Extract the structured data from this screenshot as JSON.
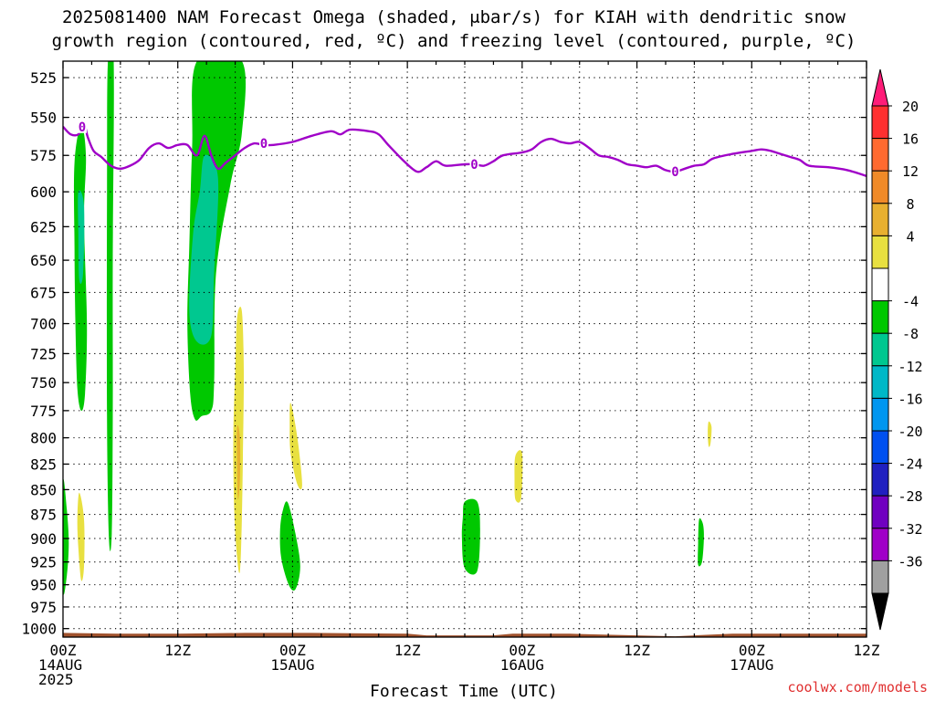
{
  "chart_data": {
    "type": "heatmap",
    "title_lines": [
      "2025081400 NAM Forecast Omega (shaded, μbar/s) for KIAH with dendritic snow",
      "growth region (contoured, red, ºC) and freezing level (contoured, purple, ºC)"
    ],
    "xlabel": "Forecast Time (UTC)",
    "credit": "coolwx.com/models",
    "x_range_hours": [
      0,
      84
    ],
    "y_scale": "log-pressure",
    "y_range_hPa": [
      1010,
      515
    ],
    "y_ticks": [
      525,
      550,
      575,
      600,
      625,
      650,
      675,
      700,
      725,
      750,
      775,
      800,
      825,
      850,
      875,
      900,
      925,
      950,
      975,
      1000
    ],
    "x_ticks": [
      {
        "hour": 0,
        "lines": [
          "00Z",
          "14AUG",
          "2025"
        ]
      },
      {
        "hour": 12,
        "lines": [
          "12Z"
        ]
      },
      {
        "hour": 24,
        "lines": [
          "00Z",
          "15AUG"
        ]
      },
      {
        "hour": 36,
        "lines": [
          "12Z"
        ]
      },
      {
        "hour": 48,
        "lines": [
          "00Z",
          "16AUG"
        ]
      },
      {
        "hour": 60,
        "lines": [
          "12Z"
        ]
      },
      {
        "hour": 72,
        "lines": [
          "00Z",
          "17AUG"
        ]
      },
      {
        "hour": 84,
        "lines": [
          "12Z"
        ]
      }
    ],
    "grid": true,
    "colorbar": {
      "orientation": "vertical",
      "placement": "right",
      "labels": [
        "20",
        "16",
        "12",
        "8",
        "4",
        "-4",
        "-8",
        "-12",
        "-16",
        "-20",
        "-24",
        "-28",
        "-32",
        "-36"
      ],
      "colors": [
        "#ff1c78",
        "#ff3030",
        "#ff6a30",
        "#f08a28",
        "#e8b030",
        "#e8e040",
        "#ffffff",
        "#00c800",
        "#00c890",
        "#00b8c8",
        "#0096f0",
        "#0050f0",
        "#2020c0",
        "#7000c0",
        "#a000c8",
        "#a0a0a0",
        "#000000"
      ]
    },
    "freezing_level": {
      "color": "#a000c8",
      "label": "0",
      "points": [
        [
          0.0,
          556
        ],
        [
          0.8,
          561
        ],
        [
          1.6,
          561
        ],
        [
          2.2,
          555
        ],
        [
          2.6,
          563
        ],
        [
          3.2,
          572
        ],
        [
          4.0,
          576
        ],
        [
          5.0,
          582
        ],
        [
          6.0,
          584
        ],
        [
          7.0,
          582
        ],
        [
          8.0,
          578
        ],
        [
          9.0,
          570
        ],
        [
          10.0,
          567
        ],
        [
          11.0,
          570
        ],
        [
          12.0,
          568
        ],
        [
          13.0,
          568
        ],
        [
          14.0,
          575
        ],
        [
          14.8,
          562
        ],
        [
          15.5,
          575
        ],
        [
          16.2,
          584
        ],
        [
          17.0,
          580
        ],
        [
          18.0,
          575
        ],
        [
          19.0,
          570
        ],
        [
          20.0,
          567
        ],
        [
          21.0,
          568
        ],
        [
          22.0,
          568
        ],
        [
          24.0,
          566
        ],
        [
          26.0,
          562
        ],
        [
          28.0,
          559
        ],
        [
          29.0,
          561
        ],
        [
          30.0,
          558
        ],
        [
          32.0,
          559
        ],
        [
          33.0,
          561
        ],
        [
          34.0,
          568
        ],
        [
          35.5,
          578
        ],
        [
          37.0,
          586
        ],
        [
          38.0,
          583
        ],
        [
          39.0,
          579
        ],
        [
          40.0,
          582
        ],
        [
          42.0,
          581
        ],
        [
          43.0,
          581
        ],
        [
          44.0,
          582
        ],
        [
          45.0,
          579
        ],
        [
          46.0,
          575
        ],
        [
          48.0,
          573
        ],
        [
          49.0,
          571
        ],
        [
          50.0,
          566
        ],
        [
          51.0,
          564
        ],
        [
          52.0,
          566
        ],
        [
          53.0,
          567
        ],
        [
          54.0,
          566
        ],
        [
          55.0,
          570
        ],
        [
          56.0,
          575
        ],
        [
          57.0,
          576
        ],
        [
          58.0,
          578
        ],
        [
          59.0,
          581
        ],
        [
          60.0,
          582
        ],
        [
          61.0,
          583
        ],
        [
          62.0,
          582
        ],
        [
          63.0,
          585
        ],
        [
          64.0,
          586
        ],
        [
          65.0,
          584
        ],
        [
          66.0,
          582
        ],
        [
          67.0,
          581
        ],
        [
          68.0,
          577
        ],
        [
          70.0,
          574
        ],
        [
          72.0,
          572
        ],
        [
          73.0,
          571
        ],
        [
          74.0,
          572
        ],
        [
          75.0,
          574
        ],
        [
          76.0,
          576
        ],
        [
          77.0,
          578
        ],
        [
          78.0,
          582
        ],
        [
          80.0,
          583
        ],
        [
          82.0,
          585
        ],
        [
          84.0,
          589
        ]
      ],
      "label_positions": [
        [
          21.0,
          567
        ],
        [
          43.0,
          581
        ],
        [
          64.0,
          586
        ],
        [
          2.0,
          556
        ]
      ]
    },
    "ground": {
      "color": "#a0522d",
      "top_hPa": [
        [
          0,
          1005
        ],
        [
          6,
          1006
        ],
        [
          12,
          1006
        ],
        [
          19,
          1005
        ],
        [
          26,
          1005
        ],
        [
          36,
          1006
        ],
        [
          38,
          1008
        ],
        [
          45,
          1008
        ],
        [
          47,
          1006
        ],
        [
          53,
          1006
        ],
        [
          60,
          1008
        ],
        [
          64,
          1009
        ],
        [
          66,
          1008
        ],
        [
          70,
          1006
        ],
        [
          84,
          1006
        ]
      ],
      "bottom_hPa": 1012
    },
    "omega_regions": [
      {
        "level": "-4",
        "color": "#00c800",
        "polygon": [
          [
            14.0,
            515
          ],
          [
            18.7,
            515
          ],
          [
            18.7,
            560
          ],
          [
            17.5,
            595
          ],
          [
            16.0,
            660
          ],
          [
            15.8,
            750
          ],
          [
            15.5,
            775
          ],
          [
            14.5,
            780
          ],
          [
            13.8,
            783
          ],
          [
            13.3,
            760
          ],
          [
            13.0,
            700
          ],
          [
            13.2,
            640
          ],
          [
            13.5,
            570
          ]
        ]
      },
      {
        "level": "-8",
        "color": "#00c890",
        "polygon": [
          [
            14.8,
            575
          ],
          [
            16.2,
            590
          ],
          [
            15.8,
            660
          ],
          [
            15.5,
            710
          ],
          [
            14.0,
            715
          ],
          [
            13.2,
            690
          ],
          [
            13.6,
            630
          ],
          [
            14.3,
            600
          ]
        ]
      },
      {
        "level": "-4",
        "color": "#00c800",
        "polygon": [
          [
            4.7,
            515
          ],
          [
            5.3,
            515
          ],
          [
            5.2,
            650
          ],
          [
            5.2,
            780
          ],
          [
            5.1,
            895
          ],
          [
            4.8,
            900
          ],
          [
            4.6,
            780
          ],
          [
            4.6,
            600
          ]
        ]
      },
      {
        "level": "-4",
        "color": "#00c800",
        "polygon": [
          [
            1.2,
            580
          ],
          [
            1.9,
            555
          ],
          [
            2.4,
            575
          ],
          [
            2.2,
            620
          ],
          [
            2.5,
            700
          ],
          [
            2.3,
            760
          ],
          [
            1.9,
            775
          ],
          [
            1.5,
            755
          ],
          [
            1.3,
            700
          ],
          [
            1.2,
            640
          ]
        ]
      },
      {
        "level": "-8",
        "color": "#00c890",
        "polygon": [
          [
            1.6,
            600
          ],
          [
            2.2,
            610
          ],
          [
            2.1,
            660
          ],
          [
            1.7,
            665
          ],
          [
            1.6,
            630
          ]
        ]
      },
      {
        "level": "-4",
        "color": "#00c800",
        "polygon": [
          [
            0.0,
            843
          ],
          [
            0.4,
            870
          ],
          [
            0.6,
            905
          ],
          [
            0.4,
            940
          ],
          [
            0.0,
            955
          ]
        ]
      },
      {
        "level": "-4",
        "color": "#00c800",
        "polygon": [
          [
            23.5,
            863
          ],
          [
            24.3,
            895
          ],
          [
            24.8,
            930
          ],
          [
            24.3,
            955
          ],
          [
            23.6,
            950
          ],
          [
            22.8,
            920
          ],
          [
            22.7,
            890
          ],
          [
            23.0,
            870
          ]
        ]
      },
      {
        "level": "-4",
        "color": "#00c800",
        "polygon": [
          [
            42.0,
            862
          ],
          [
            43.3,
            862
          ],
          [
            43.6,
            890
          ],
          [
            43.3,
            935
          ],
          [
            42.0,
            932
          ],
          [
            41.7,
            900
          ],
          [
            41.8,
            878
          ]
        ]
      },
      {
        "level": "-4",
        "color": "#00c800",
        "polygon": [
          [
            66.5,
            880
          ],
          [
            66.9,
            885
          ],
          [
            67.0,
            900
          ],
          [
            66.8,
            925
          ],
          [
            66.4,
            928
          ],
          [
            66.4,
            905
          ]
        ]
      },
      {
        "level": "4",
        "color": "#e8e040",
        "polygon": [
          [
            18.2,
            695
          ],
          [
            18.7,
            690
          ],
          [
            18.9,
            740
          ],
          [
            18.8,
            820
          ],
          [
            18.7,
            880
          ],
          [
            18.5,
            935
          ],
          [
            18.2,
            920
          ],
          [
            17.9,
            870
          ],
          [
            17.8,
            800
          ],
          [
            18.0,
            740
          ]
        ]
      },
      {
        "level": "8",
        "color": "#e8b030",
        "polygon": [
          [
            18.2,
            790
          ],
          [
            18.5,
            800
          ],
          [
            18.5,
            840
          ],
          [
            18.3,
            860
          ],
          [
            18.2,
            830
          ]
        ]
      },
      {
        "level": "4",
        "color": "#e8e040",
        "polygon": [
          [
            1.7,
            853
          ],
          [
            2.2,
            880
          ],
          [
            2.2,
            930
          ],
          [
            1.9,
            945
          ],
          [
            1.6,
            910
          ],
          [
            1.5,
            880
          ]
        ]
      },
      {
        "level": "4",
        "color": "#e8e040",
        "polygon": [
          [
            23.8,
            768
          ],
          [
            24.5,
            800
          ],
          [
            25.0,
            845
          ],
          [
            24.5,
            845
          ],
          [
            23.8,
            815
          ],
          [
            23.7,
            790
          ]
        ]
      },
      {
        "level": "4",
        "color": "#e8e040",
        "polygon": [
          [
            47.3,
            817
          ],
          [
            48.0,
            815
          ],
          [
            47.9,
            858
          ],
          [
            47.3,
            860
          ],
          [
            47.2,
            840
          ]
        ]
      },
      {
        "level": "4",
        "color": "#e8e040",
        "polygon": [
          [
            67.5,
            785
          ],
          [
            67.8,
            790
          ],
          [
            67.7,
            805
          ],
          [
            67.5,
            808
          ],
          [
            67.4,
            795
          ]
        ]
      }
    ]
  }
}
